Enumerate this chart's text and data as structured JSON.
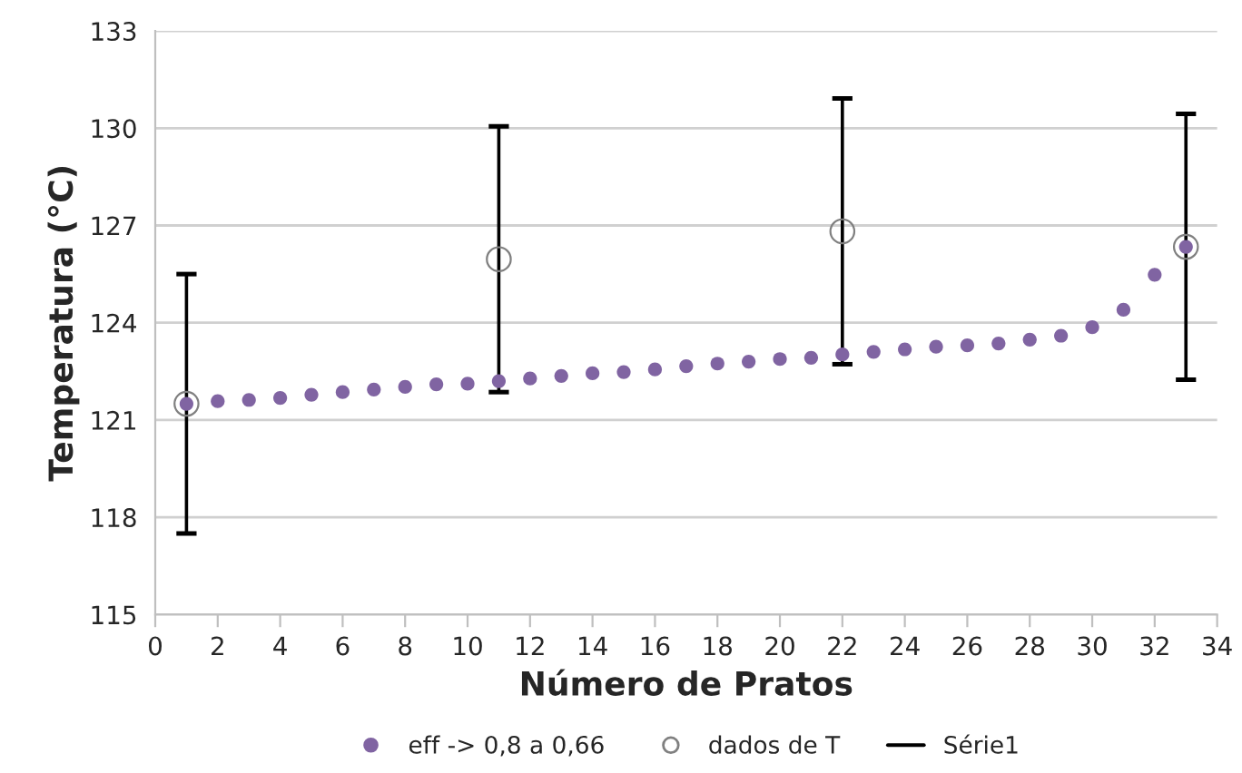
{
  "chart_data": {
    "type": "scatter",
    "xlabel": "Número de Pratos",
    "ylabel": "Temperatura (°C)",
    "xlim": [
      0,
      34
    ],
    "xticks": [
      0,
      2,
      4,
      6,
      8,
      10,
      12,
      14,
      16,
      18,
      20,
      22,
      24,
      26,
      28,
      30,
      32,
      34
    ],
    "ylim": [
      115,
      133
    ],
    "yticks": [
      115,
      118,
      121,
      124,
      127,
      130,
      133
    ],
    "grid": "y",
    "legend": "bottom",
    "series": [
      {
        "name": "eff -> 0,8 a 0,66",
        "color": "#8064a2",
        "marker": "circle",
        "x": [
          1,
          2,
          3,
          4,
          5,
          6,
          7,
          8,
          9,
          10,
          11,
          12,
          13,
          14,
          15,
          16,
          17,
          18,
          19,
          20,
          21,
          22,
          23,
          24,
          25,
          26,
          27,
          28,
          29,
          30,
          31,
          32,
          33
        ],
        "values": [
          121.5,
          121.58,
          121.62,
          121.68,
          121.78,
          121.86,
          121.94,
          122.02,
          122.1,
          122.12,
          122.2,
          122.28,
          122.36,
          122.44,
          122.48,
          122.56,
          122.66,
          122.74,
          122.8,
          122.88,
          122.92,
          123.02,
          123.1,
          123.18,
          123.26,
          123.3,
          123.36,
          123.48,
          123.6,
          123.86,
          124.4,
          125.48,
          126.34
        ]
      },
      {
        "name": "dados de T",
        "color": "#808080",
        "marker": "open circle",
        "x": [
          1,
          11,
          22,
          33
        ],
        "values": [
          121.5,
          125.96,
          126.82,
          126.34
        ],
        "errors": [
          4.0,
          4.1,
          4.1,
          4.1
        ]
      },
      {
        "name": "Série1",
        "color": "#000000",
        "type": "line",
        "marker": "none"
      }
    ]
  }
}
